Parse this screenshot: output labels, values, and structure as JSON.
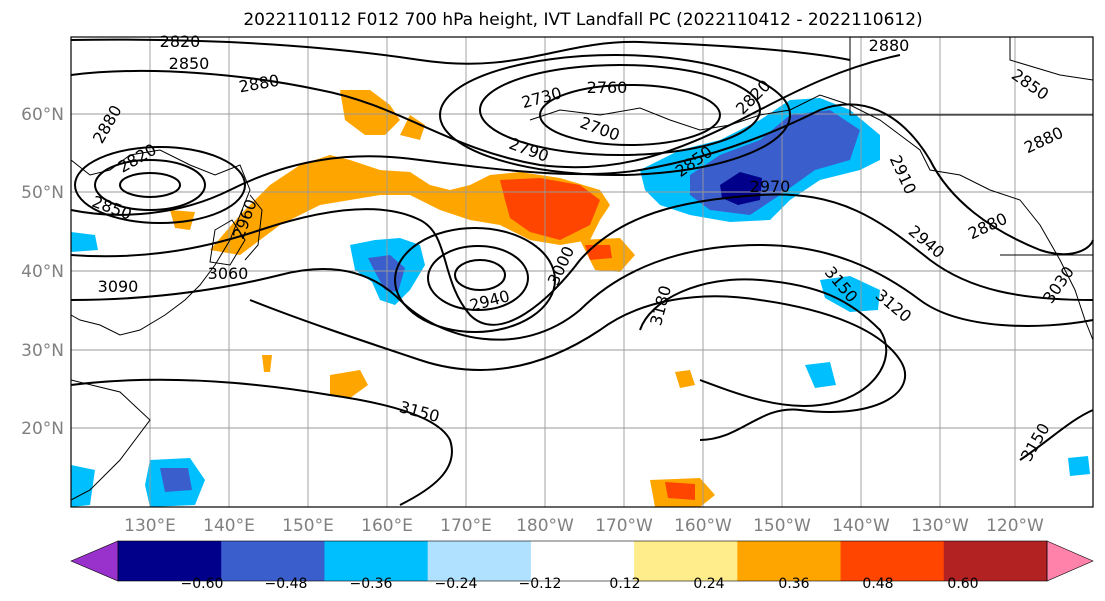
{
  "title": "2022110112 F012 700 hPa height, IVT Landfall PC (2022110412 - 2022110612)",
  "lat_labels": [
    "60°N",
    "50°N",
    "40°N",
    "30°N",
    "20°N"
  ],
  "lon_labels": [
    "130°E",
    "140°E",
    "150°E",
    "160°E",
    "170°E",
    "180°W",
    "170°W",
    "160°W",
    "150°W",
    "140°W",
    "130°W",
    "120°W"
  ],
  "colorbar": {
    "ticks": [
      "−0.60",
      "−0.48",
      "−0.36",
      "−0.24",
      "−0.12",
      "0.12",
      "0.24",
      "0.36",
      "0.48",
      "0.60"
    ],
    "colors": [
      "#9932cc",
      "#00008b",
      "#3a5fcd",
      "#00bfff",
      "#b0e2ff",
      "#ffffff",
      "#ffec8b",
      "#ffa500",
      "#ff4500",
      "#b22222",
      "#ff82ab"
    ]
  },
  "contour_labels": {
    "c2820a": "2820",
    "c2850a": "2850",
    "c2880a": "2880",
    "c2880b": "2880",
    "c2820b": "2820",
    "c2850b": "2850",
    "c2730": "2730",
    "c2760": "2760",
    "c2700": "2700",
    "c2790": "2790",
    "c2820c": "2820",
    "c2850c": "2850",
    "c2970": "2970",
    "c2880c": "2880",
    "c2850d": "2850",
    "c2880d": "2880",
    "c2910": "2910",
    "c2940a": "2940",
    "c2880e": "2880",
    "c3060": "3060",
    "c3090": "3090",
    "c2940b": "2940",
    "c3000": "3000",
    "c3180": "3180",
    "c3150a": "3150",
    "c3120": "3120",
    "c3030": "3030",
    "c3150b": "3150",
    "c3150c": "3150",
    "c2960": "2960"
  }
}
